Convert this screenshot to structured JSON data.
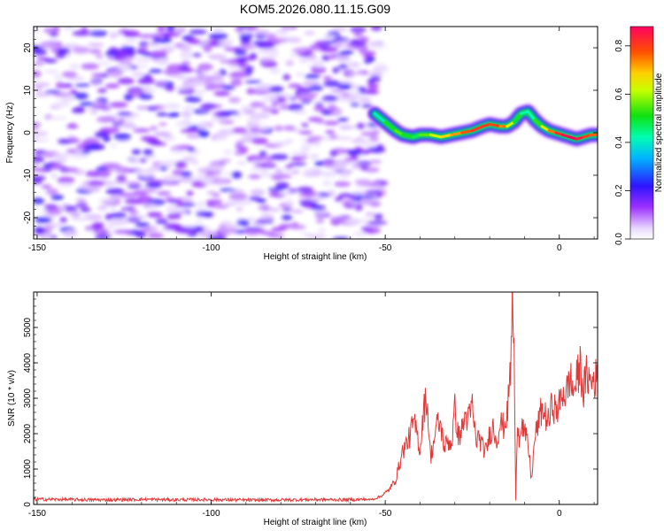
{
  "chart_data": [
    {
      "type": "heatmap",
      "title": "KOM5.2026.080.11.15.G09",
      "xlabel": "Height of straight line (km)",
      "ylabel": "Frequency (Hz)",
      "xlim": [
        -151,
        11
      ],
      "ylim": [
        -25,
        25
      ],
      "xticks": [
        -150,
        -100,
        -50,
        0
      ],
      "yticks": [
        -20,
        -10,
        0,
        10,
        20
      ],
      "noise_region_km": [
        -151,
        -51
      ],
      "noise_max_amplitude": 0.22,
      "signal_ridge": {
        "x_km": [
          -53,
          -50,
          -47,
          -45,
          -42,
          -40,
          -37,
          -34,
          -31,
          -28,
          -25,
          -22,
          -20,
          -17,
          -15,
          -13,
          -11,
          -9,
          -7,
          -5,
          -3,
          -1,
          1,
          3,
          5,
          7,
          9,
          11
        ],
        "frequency_hz": [
          4.5,
          2.5,
          0.5,
          -0.5,
          -1.0,
          -0.5,
          -0.5,
          -1.0,
          -0.5,
          0.0,
          0.5,
          1.5,
          2.0,
          1.5,
          1.5,
          2.5,
          4.5,
          5.0,
          3.0,
          1.5,
          0.5,
          0.0,
          -0.5,
          -1.0,
          -1.5,
          -1.0,
          -0.5,
          -0.5
        ],
        "amplitude": [
          0.35,
          0.45,
          0.55,
          0.55,
          0.45,
          0.5,
          0.6,
          0.65,
          0.7,
          0.75,
          0.8,
          0.82,
          0.8,
          0.78,
          0.7,
          0.55,
          0.45,
          0.4,
          0.45,
          0.6,
          0.7,
          0.8,
          0.85,
          0.88,
          0.88,
          0.82,
          0.78,
          0.75
        ]
      },
      "colorbar": {
        "label": "Normalized spectral amplitude",
        "range": [
          0.0,
          0.88
        ],
        "ticks": [
          "0.0",
          "0.2",
          "0.4",
          "0.6",
          "0.8"
        ],
        "tick_values": [
          0.0,
          0.2,
          0.4,
          0.6,
          0.8
        ]
      }
    },
    {
      "type": "line",
      "title": "",
      "xlabel": "Height of straight line (km)",
      "ylabel": "SNR (10 * v/v)",
      "xlim": [
        -151,
        11
      ],
      "ylim": [
        0,
        6000
      ],
      "xticks": [
        -150,
        -100,
        -50,
        0
      ],
      "yticks": [
        0,
        1000,
        2000,
        3000,
        4000,
        5000
      ],
      "color": "#e03a3a",
      "series": [
        {
          "name": "SNR",
          "x": [
            -151,
            -140,
            -130,
            -120,
            -110,
            -100,
            -90,
            -80,
            -70,
            -60,
            -55,
            -53,
            -51,
            -49,
            -47,
            -46,
            -45,
            -44,
            -43,
            -42,
            -41,
            -40,
            -39,
            -38,
            -37,
            -36,
            -35,
            -34,
            -33,
            -32,
            -31,
            -30,
            -29,
            -28,
            -27,
            -26,
            -25,
            -24,
            -23,
            -22,
            -21,
            -20,
            -19,
            -18,
            -17,
            -16,
            -15,
            -14,
            -13.5,
            -13,
            -12.5,
            -12,
            -11.5,
            -11,
            -10,
            -9,
            -8,
            -7,
            -6,
            -5,
            -4,
            -3,
            -2,
            -1,
            0,
            1,
            2,
            3,
            4,
            5,
            6,
            7,
            8,
            9,
            10,
            11
          ],
          "y": [
            130,
            120,
            110,
            125,
            115,
            120,
            105,
            110,
            120,
            115,
            130,
            160,
            250,
            400,
            700,
            1100,
            1500,
            1700,
            1900,
            2300,
            2100,
            1500,
            2700,
            3000,
            1300,
            1800,
            2300,
            2200,
            1600,
            1800,
            1700,
            2700,
            1900,
            2100,
            2500,
            2400,
            2800,
            1800,
            1900,
            1600,
            1500,
            2000,
            2200,
            1800,
            2300,
            2200,
            2500,
            3800,
            5800,
            4400,
            100,
            2600,
            1800,
            2400,
            2000,
            1700,
            700,
            1900,
            2300,
            2700,
            2500,
            2300,
            2900,
            2600,
            2800,
            3200,
            3100,
            3600,
            3200,
            3500,
            3900,
            3200,
            3700,
            3400,
            3600,
            3500
          ]
        }
      ]
    }
  ]
}
